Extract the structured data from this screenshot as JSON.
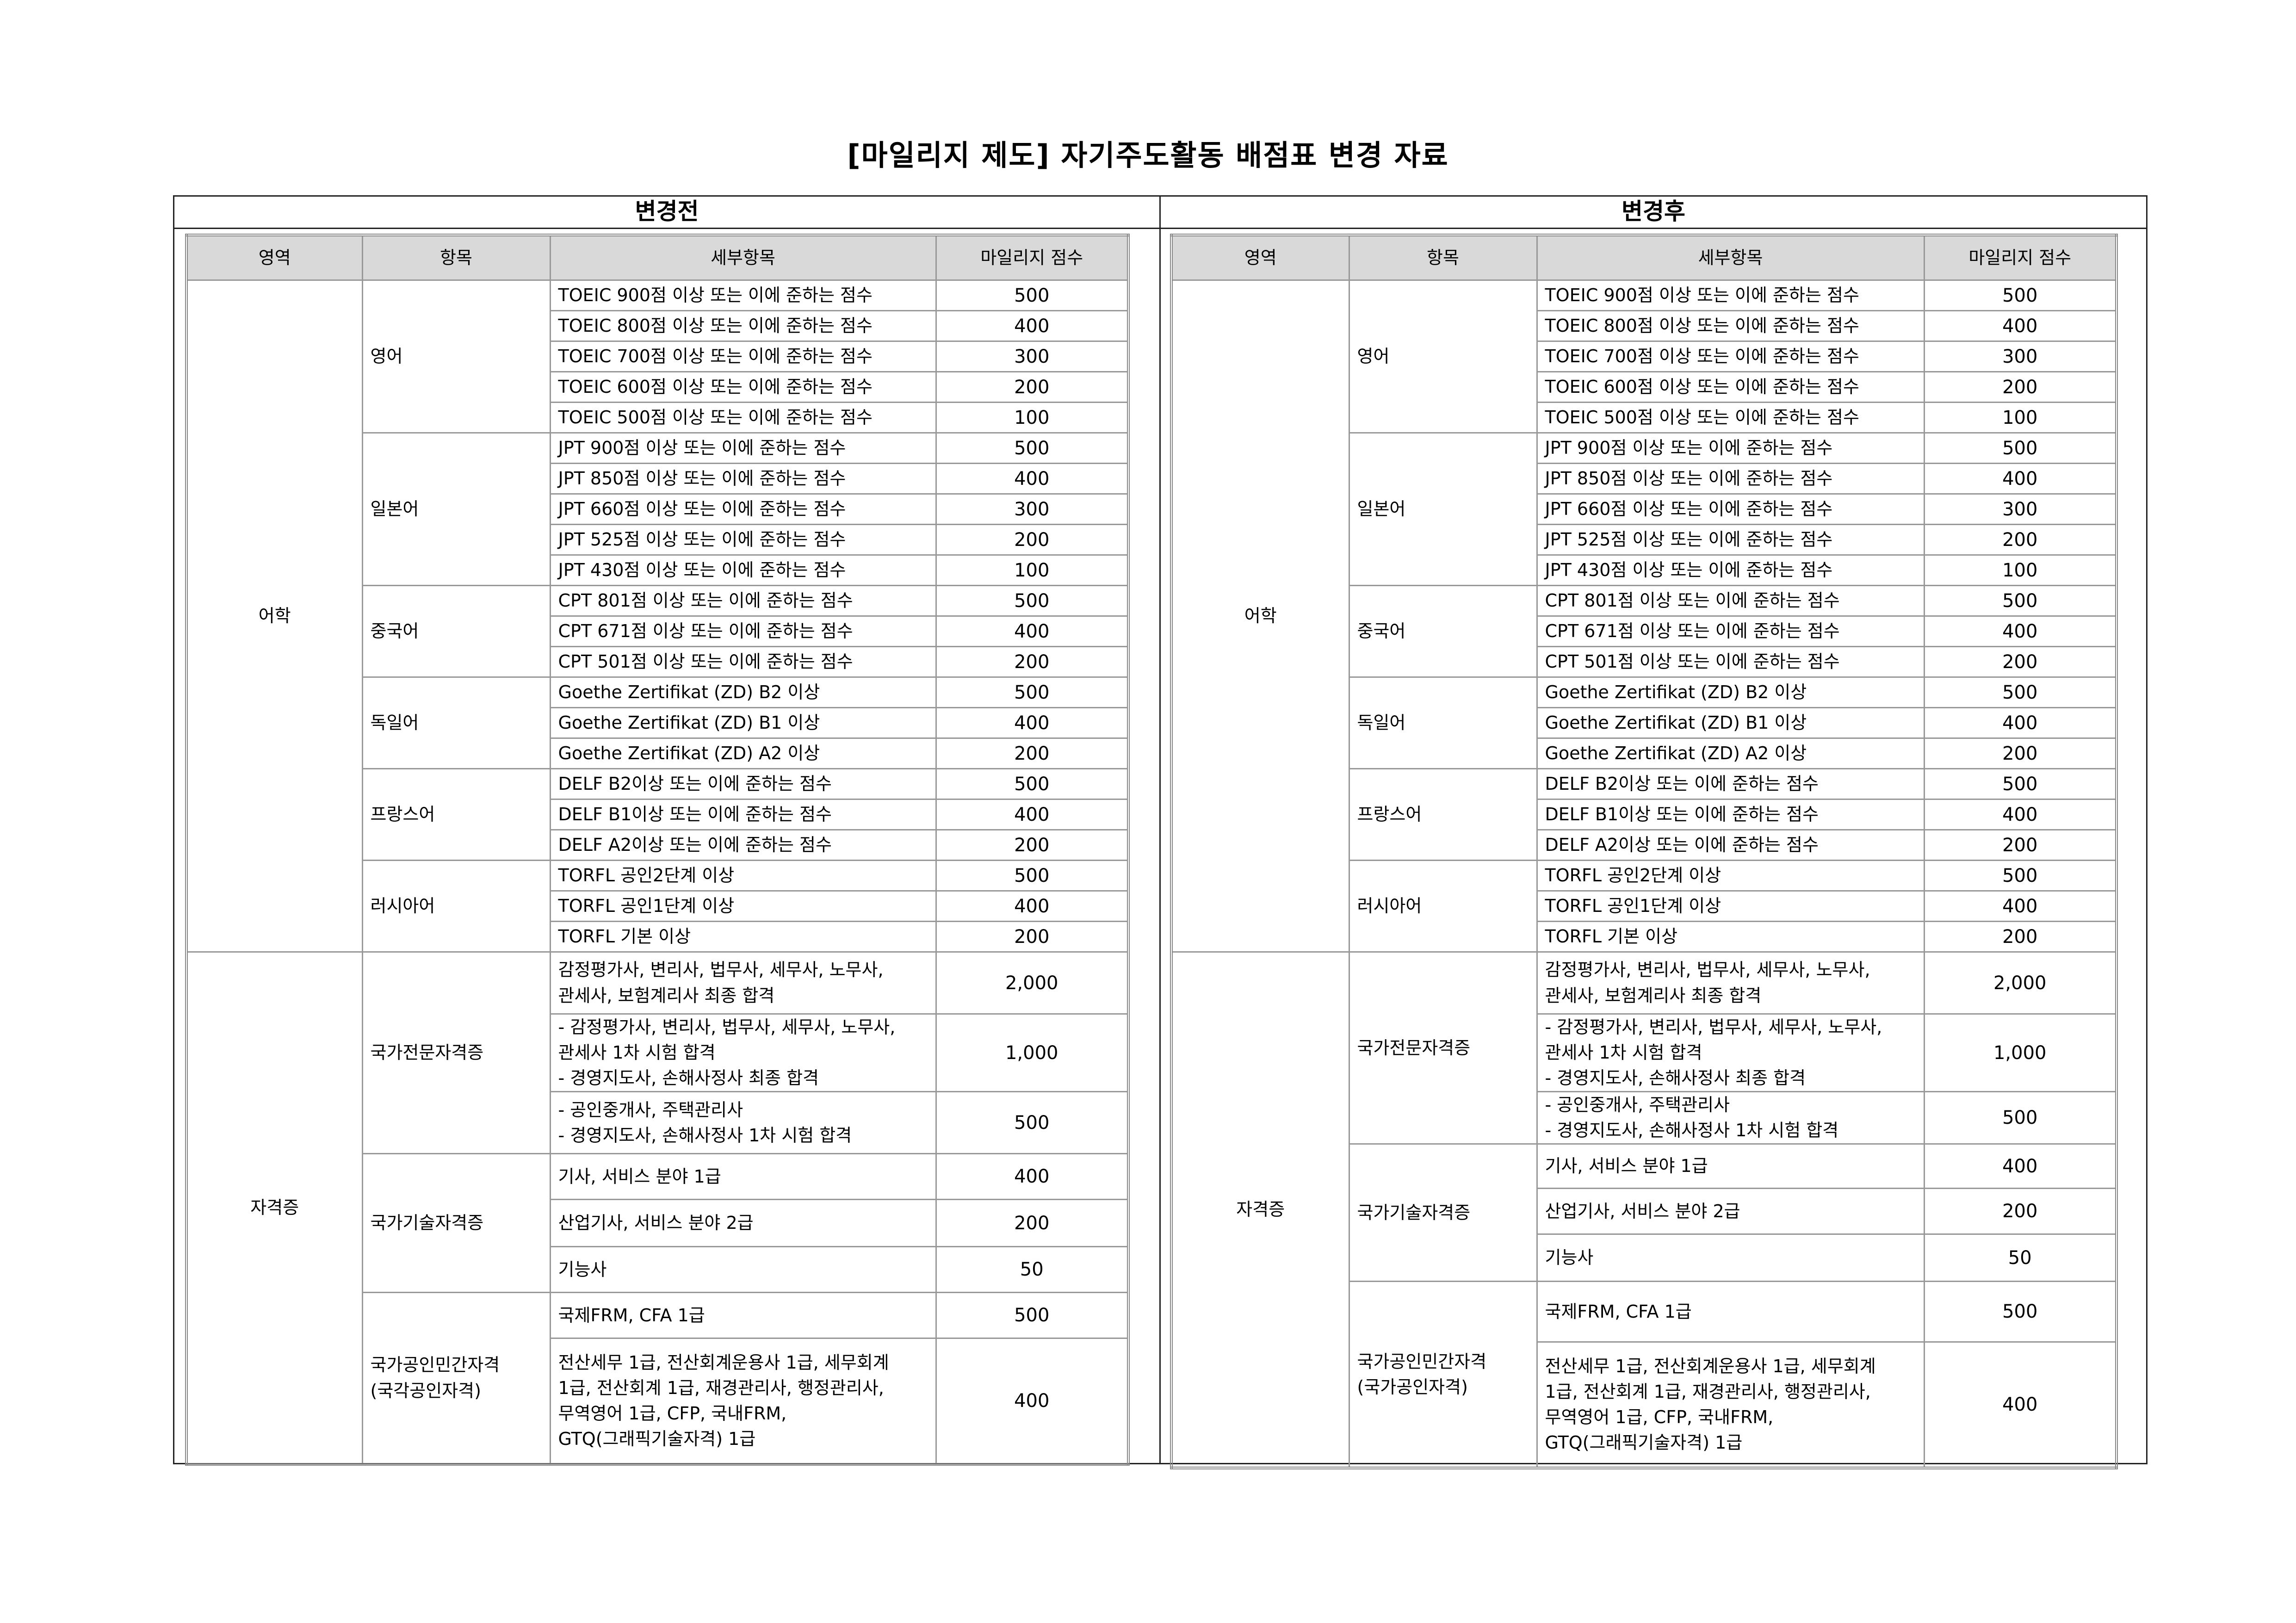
{
  "title": "[마일리지 제도] 자기주도활동 배점표 변경 자료",
  "colors": {
    "header_bg": "#d9d9d9",
    "grid": "#999999"
  },
  "sections": [
    {
      "key": "before",
      "label": "변경전",
      "columns": [
        "영역",
        "항목",
        "세부항목",
        "마일리지 점수"
      ],
      "areas": [
        {
          "name": "어학",
          "items": [
            {
              "name": "영어",
              "details": [
                {
                  "text": "TOEIC 900점 이상 또는 이에 준하는 점수",
                  "score": "500"
                },
                {
                  "text": "TOEIC 800점 이상 또는 이에 준하는 점수",
                  "score": "400"
                },
                {
                  "text": "TOEIC 700점 이상 또는 이에 준하는 점수",
                  "score": "300"
                },
                {
                  "text": "TOEIC 600점 이상 또는 이에 준하는 점수",
                  "score": "200"
                },
                {
                  "text": "TOEIC 500점 이상 또는 이에 준하는 점수",
                  "score": "100"
                }
              ]
            },
            {
              "name": "일본어",
              "details": [
                {
                  "text": "JPT 900점 이상 또는 이에 준하는 점수",
                  "score": "500"
                },
                {
                  "text": "JPT 850점 이상 또는 이에 준하는 점수",
                  "score": "400"
                },
                {
                  "text": "JPT 660점 이상 또는 이에 준하는 점수",
                  "score": "300"
                },
                {
                  "text": "JPT 525점 이상 또는 이에 준하는 점수",
                  "score": "200"
                },
                {
                  "text": "JPT 430점 이상 또는 이에 준하는 점수",
                  "score": "100"
                }
              ]
            },
            {
              "name": "중국어",
              "details": [
                {
                  "text": "CPT 801점 이상 또는 이에 준하는 점수",
                  "score": "500"
                },
                {
                  "text": "CPT 671점 이상 또는 이에 준하는 점수",
                  "score": "400"
                },
                {
                  "text": "CPT 501점 이상 또는 이에 준하는 점수",
                  "score": "200"
                }
              ]
            },
            {
              "name": "독일어",
              "details": [
                {
                  "text": "Goethe Zertifikat (ZD) B2 이상",
                  "score": "500"
                },
                {
                  "text": "Goethe Zertifikat (ZD) B1 이상",
                  "score": "400"
                },
                {
                  "text": "Goethe Zertifikat (ZD) A2 이상",
                  "score": "200"
                }
              ]
            },
            {
              "name": "프랑스어",
              "details": [
                {
                  "text": "DELF B2이상 또는 이에 준하는 점수",
                  "score": "500"
                },
                {
                  "text": "DELF B1이상 또는 이에 준하는 점수",
                  "score": "400"
                },
                {
                  "text": "DELF A2이상 또는 이에 준하는 점수",
                  "score": "200"
                }
              ]
            },
            {
              "name": "러시아어",
              "details": [
                {
                  "text": "TORFL 공인2단계 이상",
                  "score": "500"
                },
                {
                  "text": "TORFL 공인1단계 이상",
                  "score": "400"
                },
                {
                  "text": "TORFL 기본 이상",
                  "score": "200"
                }
              ]
            }
          ]
        },
        {
          "name": "자격증",
          "items": [
            {
              "name": "국가전문자격증",
              "details": [
                {
                  "text": "감정평가사, 변리사, 법무사, 세무사, 노무사,\n관세사, 보험계리사 최종 합격",
                  "score": "2,000"
                },
                {
                  "text": "- 감정평가사, 변리사, 법무사, 세무사, 노무사,\n   관세사 1차 시험 합격\n- 경영지도사, 손해사정사 최종 합격",
                  "score": "1,000"
                },
                {
                  "text": "- 공인중개사, 주택관리사\n- 경영지도사, 손해사정사 1차 시험 합격",
                  "score": "500"
                }
              ]
            },
            {
              "name": "국가기술자격증",
              "details": [
                {
                  "text": "기사, 서비스 분야 1급",
                  "score": "400"
                },
                {
                  "text": "산업기사, 서비스 분야 2급",
                  "score": "200"
                },
                {
                  "text": "기능사",
                  "score": "50"
                }
              ]
            },
            {
              "name": "국가공인민간자격\n(국각공인자격)",
              "details": [
                {
                  "text": "국제FRM, CFA 1급",
                  "score": "500"
                },
                {
                  "text": "전산세무 1급, 전산회계운용사 1급, 세무회계\n1급, 전산회계 1급, 재경관리사, 행정관리사,\n무역영어 1급, CFP, 국내FRM,\nGTQ(그래픽기술자격) 1급",
                  "score": "400"
                }
              ]
            }
          ]
        }
      ]
    },
    {
      "key": "after",
      "label": "변경후",
      "columns": [
        "영역",
        "항목",
        "세부항목",
        "마일리지 점수"
      ],
      "areas": [
        {
          "name": "어학",
          "items": [
            {
              "name": "영어",
              "details": [
                {
                  "text": "TOEIC 900점 이상 또는 이에 준하는 점수",
                  "score": "500"
                },
                {
                  "text": "TOEIC 800점 이상 또는 이에 준하는 점수",
                  "score": "400"
                },
                {
                  "text": "TOEIC 700점 이상 또는 이에 준하는 점수",
                  "score": "300"
                },
                {
                  "text": "TOEIC 600점 이상 또는 이에 준하는 점수",
                  "score": "200"
                },
                {
                  "text": "TOEIC 500점 이상 또는 이에 준하는 점수",
                  "score": "100"
                }
              ]
            },
            {
              "name": "일본어",
              "details": [
                {
                  "text": "JPT 900점 이상 또는 이에 준하는 점수",
                  "score": "500"
                },
                {
                  "text": "JPT 850점 이상 또는 이에 준하는 점수",
                  "score": "400"
                },
                {
                  "text": "JPT 660점 이상 또는 이에 준하는 점수",
                  "score": "300"
                },
                {
                  "text": "JPT 525점 이상 또는 이에 준하는 점수",
                  "score": "200"
                },
                {
                  "text": "JPT 430점 이상 또는 이에 준하는 점수",
                  "score": "100"
                }
              ]
            },
            {
              "name": "중국어",
              "details": [
                {
                  "text": "CPT 801점 이상 또는 이에 준하는 점수",
                  "score": "500"
                },
                {
                  "text": "CPT 671점 이상 또는 이에 준하는 점수",
                  "score": "400"
                },
                {
                  "text": "CPT 501점 이상 또는 이에 준하는 점수",
                  "score": "200"
                }
              ]
            },
            {
              "name": "독일어",
              "details": [
                {
                  "text": "Goethe Zertifikat (ZD) B2 이상",
                  "score": "500"
                },
                {
                  "text": "Goethe Zertifikat (ZD) B1 이상",
                  "score": "400"
                },
                {
                  "text": "Goethe Zertifikat (ZD) A2 이상",
                  "score": "200"
                }
              ]
            },
            {
              "name": "프랑스어",
              "details": [
                {
                  "text": "DELF B2이상 또는 이에 준하는 점수",
                  "score": "500"
                },
                {
                  "text": "DELF B1이상 또는 이에 준하는 점수",
                  "score": "400"
                },
                {
                  "text": "DELF A2이상 또는 이에 준하는 점수",
                  "score": "200"
                }
              ]
            },
            {
              "name": "러시아어",
              "details": [
                {
                  "text": "TORFL 공인2단계 이상",
                  "score": "500"
                },
                {
                  "text": "TORFL 공인1단계 이상",
                  "score": "400"
                },
                {
                  "text": "TORFL 기본 이상",
                  "score": "200"
                }
              ]
            }
          ]
        },
        {
          "name": "자격증",
          "items": [
            {
              "name": "국가전문자격증",
              "details": [
                {
                  "text": "감정평가사, 변리사, 법무사, 세무사, 노무사,\n관세사, 보험계리사 최종 합격",
                  "score": "2,000"
                },
                {
                  "text": "- 감정평가사, 변리사, 법무사, 세무사, 노무사,\n   관세사 1차 시험 합격\n- 경영지도사, 손해사정사 최종 합격",
                  "score": "1,000"
                },
                {
                  "text": "- 공인중개사, 주택관리사\n- 경영지도사, 손해사정사 1차 시험 합격",
                  "score": "500"
                }
              ]
            },
            {
              "name": "국가기술자격증",
              "details": [
                {
                  "text": "기사, 서비스 분야 1급",
                  "score": "400"
                },
                {
                  "text": "산업기사, 서비스 분야 2급",
                  "score": "200"
                },
                {
                  "text": "기능사",
                  "score": "50"
                }
              ]
            },
            {
              "name": "국가공인민간자격\n(국가공인자격)",
              "details": [
                {
                  "text": "국제FRM, CFA 1급",
                  "score": "500"
                },
                {
                  "text": "전산세무 1급, 전산회계운용사 1급, 세무회계\n1급, 전산회계 1급, 재경관리사, 행정관리사,\n무역영어 1급, CFP, 국내FRM,\nGTQ(그래픽기술자격) 1급",
                  "score": "400"
                }
              ]
            }
          ]
        }
      ]
    }
  ]
}
